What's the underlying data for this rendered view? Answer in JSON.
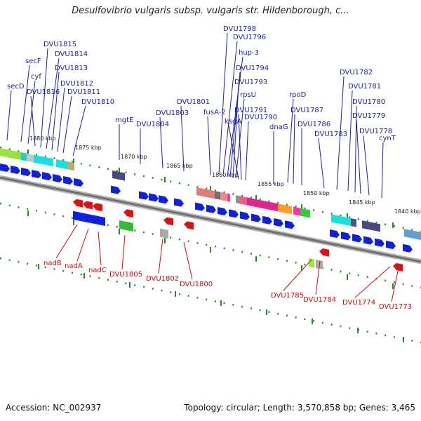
{
  "title": "Desulfovibrio vulgaris subsp. vulgaris str. Hildenborough, c...",
  "accession": "Accession: NC_002937",
  "topology": "Topology: circular; Length: 3,570,858 bp; Genes: 3,465",
  "colors": {
    "forward": "#1020e0",
    "reverse": "#e01010",
    "top_label": "#1d1da6",
    "bottom_label": "#cc0a0a",
    "backbone": "#909090",
    "tick": "#2a8a2a"
  },
  "ticks": [
    "1880 kbp",
    "1875 kbp",
    "1870 kbp",
    "1865 kbp",
    "1860 kbp",
    "1855 kbp",
    "1850 kbp",
    "1845 kbp",
    "1840 kbp"
  ],
  "top_genes": [
    "secD",
    "secF",
    "cyf",
    "DVU1816",
    "DVU1815",
    "DVU1814",
    "DVU1813",
    "DVU1812",
    "DVU1811",
    "DVU1810",
    "mgtE",
    "DVU1804",
    "DVU1803",
    "DVU1801",
    "fusA-2",
    "DVU1798",
    "DVU1796",
    "hup-3",
    "DVU1794",
    "DVU1793",
    "rpsU",
    "ksgA",
    "DVU1791",
    "DVU1790",
    "rpoD",
    "dnaG",
    "DVU1787",
    "DVU1786",
    "DVU1783",
    "DVU1782",
    "DVU1781",
    "DVU1780",
    "DVU1779",
    "DVU1778",
    "cynT"
  ],
  "bottom_genes": [
    "nadB",
    "nadA",
    "nadC",
    "DVU1805",
    "DVU1802",
    "DVU1800",
    "DVU1785",
    "DVU1784",
    "DVU1774",
    "DVU1773"
  ]
}
